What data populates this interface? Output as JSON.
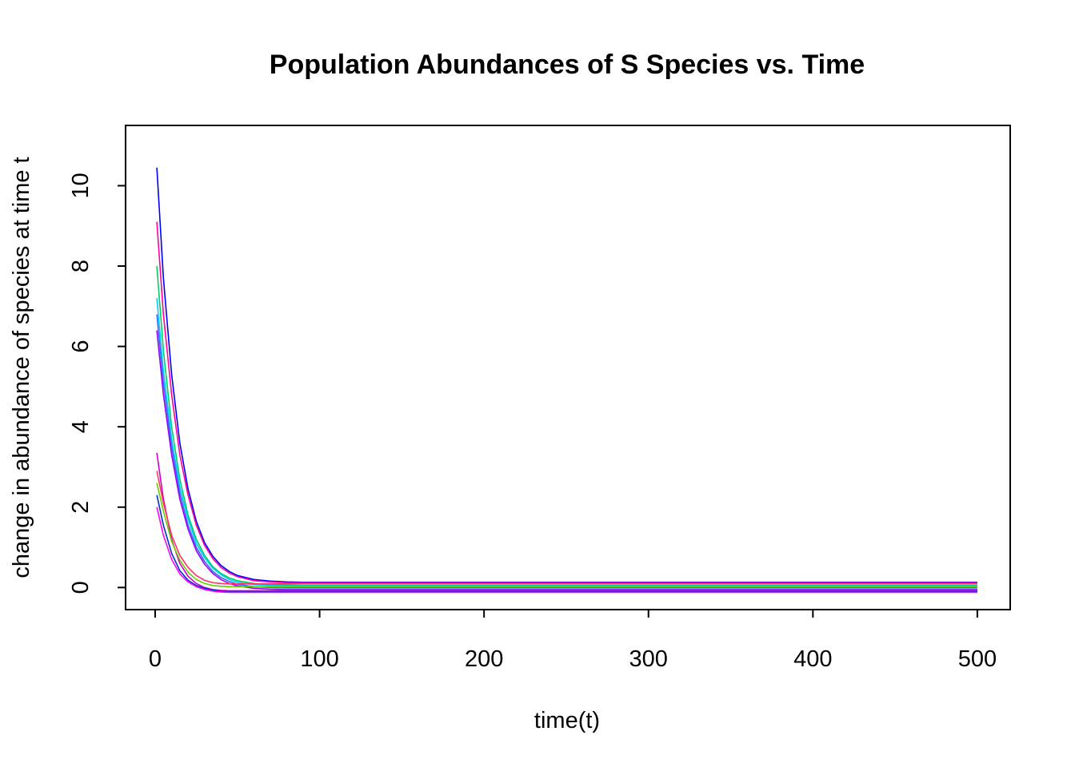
{
  "chart_data": {
    "type": "line",
    "title": "Population Abundances of S Species vs. Time",
    "xlabel": "time(t)",
    "ylabel": "change in abundance of species at time t",
    "xlim": [
      -18,
      520
    ],
    "ylim": [
      -0.55,
      11.5
    ],
    "xticks": [
      0,
      100,
      200,
      300,
      400,
      500
    ],
    "yticks": [
      0,
      2,
      4,
      6,
      8,
      10
    ],
    "grid": false,
    "legend": "none",
    "x": [
      1,
      5,
      10,
      15,
      20,
      25,
      30,
      35,
      40,
      45,
      50,
      60,
      70,
      80,
      90,
      100,
      150,
      200,
      250,
      300,
      350,
      400,
      450,
      500
    ],
    "series": [
      {
        "color": "#0000ff",
        "values": [
          10.45,
          7.7,
          5.3,
          3.6,
          2.45,
          1.65,
          1.12,
          0.78,
          0.55,
          0.4,
          0.3,
          0.2,
          0.16,
          0.14,
          0.13,
          0.13,
          0.13,
          0.13,
          0.13,
          0.13,
          0.13,
          0.13,
          0.13,
          0.13
        ]
      },
      {
        "color": "#ff0099",
        "values": [
          9.1,
          6.8,
          4.8,
          3.3,
          2.3,
          1.55,
          1.05,
          0.72,
          0.5,
          0.36,
          0.27,
          0.17,
          0.14,
          0.12,
          0.12,
          0.12,
          0.12,
          0.12,
          0.12,
          0.12,
          0.12,
          0.12,
          0.12,
          0.12
        ]
      },
      {
        "color": "#00cc66",
        "values": [
          8.0,
          5.9,
          4.0,
          2.7,
          1.8,
          1.2,
          0.8,
          0.52,
          0.35,
          0.24,
          0.17,
          0.1,
          0.07,
          0.06,
          0.05,
          0.05,
          0.05,
          0.05,
          0.05,
          0.05,
          0.05,
          0.05,
          0.05,
          0.05
        ]
      },
      {
        "color": "#00ccff",
        "values": [
          7.2,
          5.4,
          3.7,
          2.5,
          1.7,
          1.1,
          0.74,
          0.48,
          0.32,
          0.2,
          0.13,
          0.07,
          0.05,
          0.04,
          0.04,
          0.04,
          0.04,
          0.04,
          0.04,
          0.04,
          0.04,
          0.04,
          0.04,
          0.04
        ]
      },
      {
        "color": "#3366ff",
        "values": [
          6.8,
          5.1,
          3.5,
          2.35,
          1.55,
          1.0,
          0.65,
          0.4,
          0.25,
          0.15,
          0.08,
          0.02,
          0.0,
          -0.01,
          -0.01,
          -0.01,
          -0.01,
          -0.01,
          -0.01,
          -0.01,
          -0.01,
          -0.01,
          -0.01,
          -0.01
        ]
      },
      {
        "color": "#9900ff",
        "values": [
          6.4,
          4.8,
          3.3,
          2.2,
          1.45,
          0.92,
          0.58,
          0.35,
          0.2,
          0.1,
          0.04,
          -0.02,
          -0.04,
          -0.05,
          -0.05,
          -0.05,
          -0.05,
          -0.05,
          -0.05,
          -0.05,
          -0.05,
          -0.05,
          -0.05,
          -0.05
        ]
      },
      {
        "color": "#cc00cc",
        "values": [
          3.35,
          2.2,
          1.2,
          0.6,
          0.28,
          0.1,
          0.0,
          -0.05,
          -0.07,
          -0.08,
          -0.08,
          -0.08,
          -0.08,
          -0.08,
          -0.08,
          -0.08,
          -0.08,
          -0.08,
          -0.08,
          -0.08,
          -0.08,
          -0.08,
          -0.08,
          -0.08
        ]
      },
      {
        "color": "#ff3366",
        "values": [
          2.9,
          2.1,
          1.3,
          0.8,
          0.5,
          0.3,
          0.18,
          0.12,
          0.1,
          0.09,
          0.09,
          0.09,
          0.09,
          0.09,
          0.09,
          0.09,
          0.09,
          0.09,
          0.09,
          0.09,
          0.09,
          0.09,
          0.09,
          0.09
        ]
      },
      {
        "color": "#66cc00",
        "values": [
          2.6,
          1.9,
          1.15,
          0.68,
          0.38,
          0.2,
          0.1,
          0.05,
          0.03,
          0.02,
          0.02,
          0.02,
          0.02,
          0.02,
          0.02,
          0.02,
          0.02,
          0.02,
          0.02,
          0.02,
          0.02,
          0.02,
          0.02,
          0.02
        ]
      },
      {
        "color": "#0033cc",
        "values": [
          2.3,
          1.55,
          0.85,
          0.42,
          0.18,
          0.05,
          -0.02,
          -0.06,
          -0.09,
          -0.1,
          -0.1,
          -0.1,
          -0.1,
          -0.1,
          -0.1,
          -0.1,
          -0.1,
          -0.1,
          -0.1,
          -0.1,
          -0.1,
          -0.1,
          -0.1,
          -0.1
        ]
      },
      {
        "color": "#ff00ff",
        "values": [
          2.0,
          1.3,
          0.7,
          0.34,
          0.14,
          0.02,
          -0.05,
          -0.09,
          -0.11,
          -0.12,
          -0.12,
          -0.12,
          -0.12,
          -0.12,
          -0.12,
          -0.12,
          -0.12,
          -0.12,
          -0.12,
          -0.12,
          -0.12,
          -0.12,
          -0.12,
          -0.12
        ]
      }
    ]
  }
}
